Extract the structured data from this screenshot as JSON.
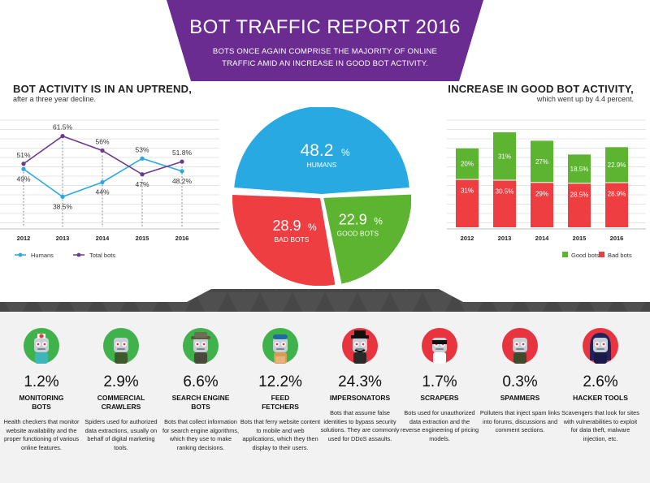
{
  "header": {
    "title": "BOT TRAFFIC REPORT 2016",
    "subtitle_line1": "BOTS ONCE AGAIN COMPRISE THE MAJORITY OF ONLINE",
    "subtitle_line2": "TRAFFIC AMID AN INCREASE IN GOOD BOT ACTIVITY."
  },
  "left_section": {
    "title": "BOT ACTIVITY IS IN AN UPTREND,",
    "subtitle": "after a three year decline."
  },
  "right_section": {
    "title": "INCREASE IN GOOD BOT ACTIVITY,",
    "subtitle": "which went up by 4.4 percent."
  },
  "colors": {
    "purple": "#6a2c91",
    "humans": "#29a9e1",
    "good_bots": "#5cb431",
    "bad_bots": "#ef3e42",
    "total_line": "#6b3a8e",
    "dark_band": "#4a4a4a"
  },
  "chart_data": [
    {
      "id": "line",
      "type": "line",
      "title": "BOT ACTIVITY IS IN AN UPTREND,",
      "categories": [
        "2012",
        "2013",
        "2014",
        "2015",
        "2016"
      ],
      "series": [
        {
          "name": "Humans",
          "values": [
            49,
            38.5,
            44,
            53,
            48.2
          ],
          "labels": [
            "49%",
            "38.5%",
            "44%",
            "53%",
            "48.2%"
          ],
          "color": "#29a9e1"
        },
        {
          "name": "Total bots",
          "values": [
            51,
            61.5,
            56,
            47,
            51.8
          ],
          "labels": [
            "51%",
            "61.5%",
            "56%",
            "47%",
            "51.8%"
          ],
          "color": "#6b3a8e"
        }
      ],
      "ylim": [
        30,
        70
      ],
      "legend": "bottom-left"
    },
    {
      "id": "pie",
      "type": "pie",
      "slices": [
        {
          "name": "HUMANS",
          "value": 48.2,
          "number": "48.2",
          "unit": "%",
          "color": "#29a9e1"
        },
        {
          "name": "GOOD BOTS",
          "value": 22.9,
          "number": "22.9",
          "unit": "%",
          "color": "#5cb431"
        },
        {
          "name": "BAD BOTS",
          "value": 28.9,
          "number": "28.9",
          "unit": "%",
          "color": "#ef3e42"
        }
      ]
    },
    {
      "id": "bar",
      "type": "bar",
      "title": "INCREASE IN GOOD BOT ACTIVITY,",
      "categories": [
        "2012",
        "2013",
        "2014",
        "2015",
        "2016"
      ],
      "series": [
        {
          "name": "Bad bots",
          "values": [
            31,
            30.5,
            29,
            28.5,
            28.9
          ],
          "labels": [
            "31%",
            "30.5%",
            "29%",
            "28.5%",
            "28.9%"
          ],
          "color": "#ef3e42"
        },
        {
          "name": "Good bots",
          "values": [
            20,
            31,
            27,
            18.5,
            22.9
          ],
          "labels": [
            "20%",
            "31%",
            "27%",
            "18.5%",
            "22.9%"
          ],
          "color": "#5cb431"
        }
      ],
      "stacked": true,
      "ylim": [
        0,
        70
      ],
      "legend": "bottom-right",
      "legend_order": [
        "Good bots",
        "Bad bots"
      ]
    }
  ],
  "categories": [
    {
      "pct": "1.2%",
      "name1": "MONITORING",
      "name2": "BOTS",
      "desc": "Health checkers that monitor website availability and the proper functioning of various online features.",
      "icon": "robot-doctor-icon"
    },
    {
      "pct": "2.9%",
      "name1": "COMMERCIAL",
      "name2": "CRAWLERS",
      "desc": "Spiders used for authorized data extractions, usually on behalf of digital marketing tools.",
      "icon": "robot-spider-icon"
    },
    {
      "pct": "6.6%",
      "name1": "SEARCH ENGINE",
      "name2": "BOTS",
      "desc": "Bots that collect information for search engine algorithms, which they use to make ranking decisions.",
      "icon": "robot-detective-icon"
    },
    {
      "pct": "12.2%",
      "name1": "FEED",
      "name2": "FETCHERS",
      "desc": "Bots that ferry website content to mobile and web applications, which they then display to their users.",
      "icon": "robot-courier-icon"
    },
    {
      "pct": "24.3%",
      "name1": "IMPERSONATORS",
      "name2": "",
      "desc": "Bots that assume false identities to bypass security solutions. They are commonly used for DDoS assaults.",
      "icon": "robot-disguise-icon"
    },
    {
      "pct": "1.7%",
      "name1": "SCRAPERS",
      "name2": "",
      "desc": "Bots used for unauthorized data extraction and the reverse engineering of pricing models.",
      "icon": "robot-thief-icon"
    },
    {
      "pct": "0.3%",
      "name1": "SPAMMERS",
      "name2": "",
      "desc": "Polluters that inject spam links into forums, discussions and comment sections.",
      "icon": "robot-spammer-icon"
    },
    {
      "pct": "2.6%",
      "name1": "HACKER TOOLS",
      "name2": "",
      "desc": "Scavengers that look for sites with vulnerabilities to exploit for data theft, malware injection, etc.",
      "icon": "robot-hacker-icon"
    }
  ]
}
